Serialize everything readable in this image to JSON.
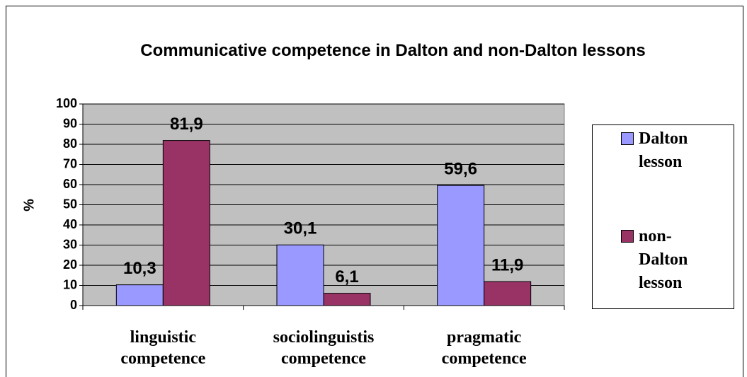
{
  "chart_data": {
    "type": "bar",
    "title": "Communicative competence in Dalton and non-Dalton lessons",
    "y_label": "%",
    "categories": [
      "linguistic competence",
      "sociolinguistis competence",
      "pragmatic competence"
    ],
    "series": [
      {
        "name": "Dalton lesson",
        "color": "#9999ff",
        "values": [
          10.3,
          30.1,
          59.6
        ],
        "value_labels": [
          "10,3",
          "30,1",
          "59,6"
        ]
      },
      {
        "name": "non-Dalton lesson",
        "color": "#993366",
        "values": [
          81.9,
          6.1,
          11.9
        ],
        "value_labels": [
          "81,9",
          "6,1",
          "11,9"
        ]
      }
    ],
    "ylim": [
      0,
      100
    ],
    "yticks": [
      0,
      10,
      20,
      30,
      40,
      50,
      60,
      70,
      80,
      90,
      100
    ],
    "grid": true,
    "legend": "right"
  }
}
